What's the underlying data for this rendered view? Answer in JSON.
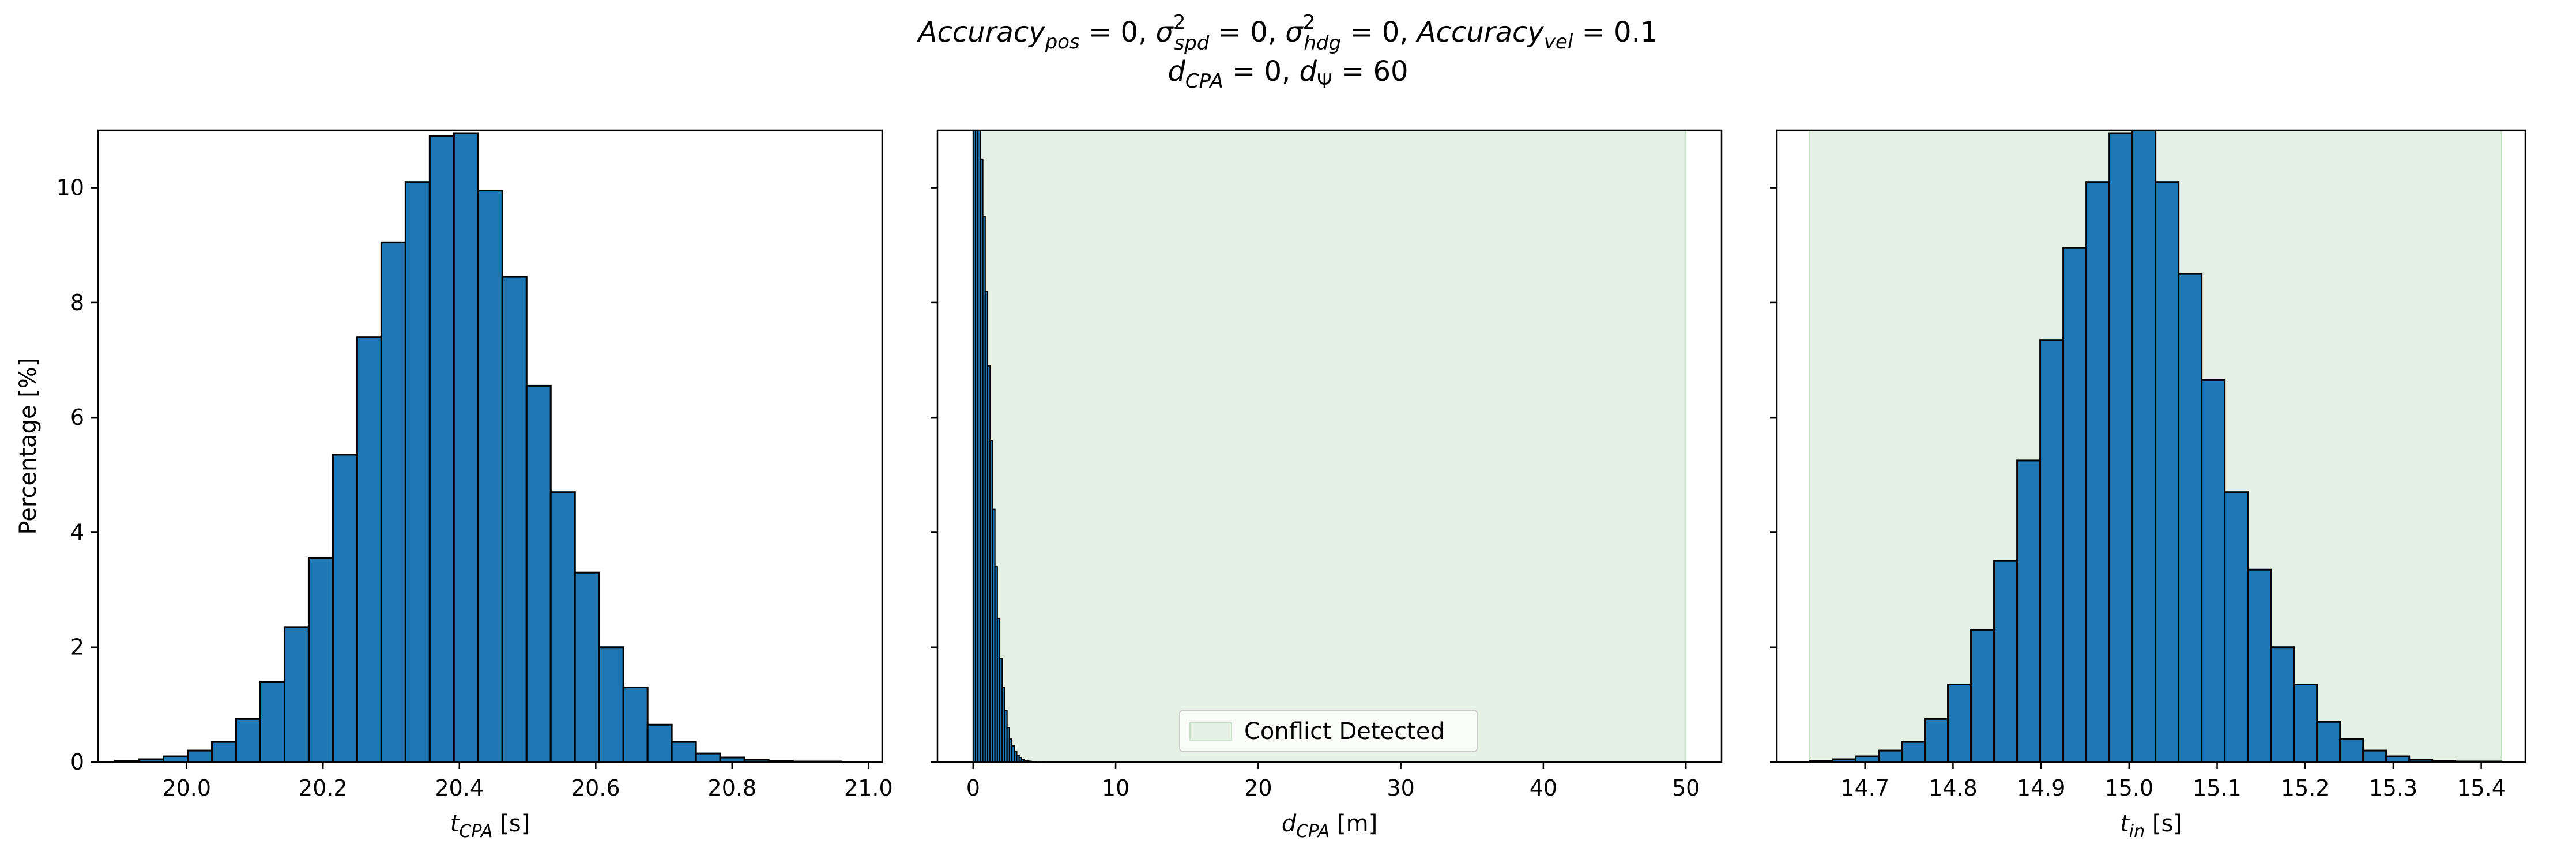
{
  "figure": {
    "title_line1": "Accuracy_pos = 0, σ²_spd = 0, σ²_hdg = 0, Accuracy_vel = 0.1",
    "title_line2": "d_CPA = 0, d_Ψ = 60"
  },
  "colors": {
    "bar_fill": "#1f77b4",
    "bar_edge": "#000000",
    "conflict_fill": "#e5f1e5",
    "conflict_edge": "#c8e0c8"
  },
  "chart_data": [
    {
      "type": "bar",
      "subtype": "histogram",
      "title": "",
      "xlabel": "t_CPA [s]",
      "ylabel": "Percentage [%]",
      "xlim": [
        19.87,
        21.02
      ],
      "ylim": [
        0,
        11
      ],
      "xticks": [
        20.0,
        20.2,
        20.4,
        20.6,
        20.8,
        21.0
      ],
      "xtick_labels": [
        "20.0",
        "20.2",
        "20.4",
        "20.6",
        "20.8",
        "21.0"
      ],
      "yticks": [
        0,
        2,
        4,
        6,
        8,
        10
      ],
      "ytick_labels": [
        "0",
        "2",
        "4",
        "6",
        "8",
        "10"
      ],
      "grid": false,
      "bin_edges": [
        19.895,
        19.9305,
        19.966,
        20.0015,
        20.037,
        20.0725,
        20.108,
        20.1435,
        20.179,
        20.2145,
        20.25,
        20.2855,
        20.321,
        20.3565,
        20.392,
        20.4275,
        20.463,
        20.4985,
        20.534,
        20.5695,
        20.605,
        20.6405,
        20.676,
        20.7115,
        20.747,
        20.7825,
        20.818,
        20.8535,
        20.889,
        20.9245,
        20.96
      ],
      "values": [
        0.02,
        0.05,
        0.1,
        0.2,
        0.35,
        0.75,
        1.4,
        2.35,
        3.55,
        5.35,
        7.4,
        9.05,
        10.1,
        10.9,
        10.95,
        9.95,
        8.45,
        6.55,
        4.7,
        3.3,
        2.0,
        1.3,
        0.65,
        0.35,
        0.15,
        0.08,
        0.04,
        0.02,
        0.01,
        0.01
      ]
    },
    {
      "type": "bar",
      "subtype": "histogram",
      "title": "",
      "xlabel": "d_CPA [m]",
      "ylabel": "",
      "xlim": [
        -2.5,
        52.5
      ],
      "ylim": [
        0,
        11
      ],
      "xticks": [
        0,
        10,
        20,
        30,
        40,
        50
      ],
      "xtick_labels": [
        "0",
        "10",
        "20",
        "30",
        "40",
        "50"
      ],
      "yticks": [
        0,
        2,
        4,
        6,
        8,
        10
      ],
      "ytick_labels": [
        "",
        "",
        "",
        "",
        "",
        ""
      ],
      "grid": false,
      "shaded_region": {
        "x0": 0,
        "x1": 50,
        "label": "Conflict Detected"
      },
      "legend": {
        "entries": [
          "Conflict Detected"
        ],
        "placement": "lower center"
      },
      "bin_edges": [
        0.0,
        0.17,
        0.34,
        0.51,
        0.68,
        0.85,
        1.02,
        1.19,
        1.36,
        1.53,
        1.7,
        1.87,
        2.04,
        2.21,
        2.38,
        2.55,
        2.72,
        2.89,
        3.06,
        3.23,
        3.4,
        3.57,
        3.74,
        3.91,
        4.08,
        4.25,
        4.42,
        4.59,
        4.76,
        4.93,
        5.1
      ],
      "values": [
        11.0,
        11.0,
        11.0,
        10.5,
        9.5,
        8.2,
        6.9,
        5.6,
        4.4,
        3.4,
        2.5,
        1.8,
        1.3,
        0.9,
        0.6,
        0.4,
        0.28,
        0.18,
        0.12,
        0.08,
        0.05,
        0.03,
        0.02,
        0.015,
        0.01,
        0.008,
        0.005,
        0.003,
        0.002,
        0.001
      ]
    },
    {
      "type": "bar",
      "subtype": "histogram",
      "title": "",
      "xlabel": "t_in [s]",
      "ylabel": "",
      "xlim": [
        14.6,
        15.45
      ],
      "ylim": [
        0,
        11
      ],
      "xticks": [
        14.7,
        14.8,
        14.9,
        15.0,
        15.1,
        15.2,
        15.3,
        15.4
      ],
      "xtick_labels": [
        "14.7",
        "14.8",
        "14.9",
        "15.0",
        "15.1",
        "15.2",
        "15.3",
        "15.4"
      ],
      "yticks": [
        0,
        2,
        4,
        6,
        8,
        10
      ],
      "ytick_labels": [
        "",
        "",
        "",
        "",
        "",
        ""
      ],
      "grid": false,
      "shaded_region": {
        "x0": 14.637,
        "x1": 15.423,
        "label": ""
      },
      "bin_edges": [
        14.637,
        14.6632,
        14.6894,
        14.7156,
        14.7418,
        14.768,
        14.7942,
        14.8204,
        14.8466,
        14.8728,
        14.899,
        14.9252,
        14.9514,
        14.9776,
        15.0038,
        15.03,
        15.0562,
        15.0824,
        15.1086,
        15.1348,
        15.161,
        15.1872,
        15.2134,
        15.2396,
        15.2658,
        15.292,
        15.3182,
        15.3444,
        15.3706,
        15.3968,
        15.423
      ],
      "values": [
        0.02,
        0.05,
        0.1,
        0.2,
        0.35,
        0.75,
        1.35,
        2.3,
        3.5,
        5.25,
        7.35,
        8.95,
        10.1,
        10.95,
        11.0,
        10.1,
        8.5,
        6.65,
        4.7,
        3.35,
        2.0,
        1.35,
        0.7,
        0.4,
        0.2,
        0.1,
        0.04,
        0.02,
        0.01,
        0.01
      ]
    }
  ]
}
